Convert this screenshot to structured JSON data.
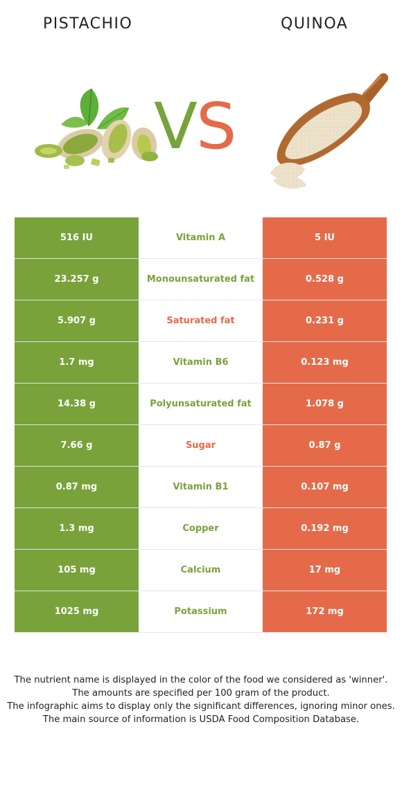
{
  "foods": {
    "left": {
      "name": "PISTACHIO",
      "color": "#79a23a",
      "image": "pistachio-nuts-illustration"
    },
    "right": {
      "name": "QUINOA",
      "color": "#e56a4a",
      "image": "quinoa-scoop-illustration"
    }
  },
  "vs": {
    "v": "V",
    "s": "S"
  },
  "rows": [
    {
      "left": "516 IU",
      "nutrient": "Vitamin A",
      "right": "5 IU",
      "winner": "left"
    },
    {
      "left": "23.257 g",
      "nutrient": "Monounsaturated fat",
      "right": "0.528 g",
      "winner": "left"
    },
    {
      "left": "5.907 g",
      "nutrient": "Saturated fat",
      "right": "0.231 g",
      "winner": "right"
    },
    {
      "left": "1.7 mg",
      "nutrient": "Vitamin B6",
      "right": "0.123 mg",
      "winner": "left"
    },
    {
      "left": "14.38 g",
      "nutrient": "Polyunsaturated fat",
      "right": "1.078 g",
      "winner": "left"
    },
    {
      "left": "7.66 g",
      "nutrient": "Sugar",
      "right": "0.87 g",
      "winner": "right"
    },
    {
      "left": "0.87 mg",
      "nutrient": "Vitamin B1",
      "right": "0.107 mg",
      "winner": "left"
    },
    {
      "left": "1.3 mg",
      "nutrient": "Copper",
      "right": "0.192 mg",
      "winner": "left"
    },
    {
      "left": "105 mg",
      "nutrient": "Calcium",
      "right": "17 mg",
      "winner": "left"
    },
    {
      "left": "1025 mg",
      "nutrient": "Potassium",
      "right": "172 mg",
      "winner": "left"
    }
  ],
  "footnote": [
    "The nutrient name is displayed in the color of the food we considered as 'winner'.",
    "The amounts are specified per 100 gram of the product.",
    "The infographic aims to display only the significant differences, ignoring minor ones.",
    "The main source of information is USDA Food Composition Database."
  ]
}
